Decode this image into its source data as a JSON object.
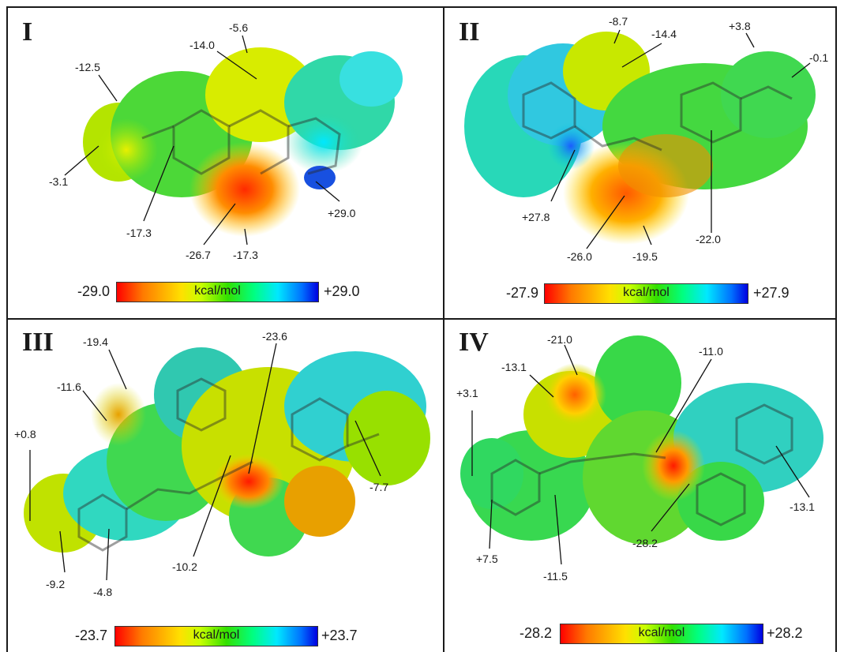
{
  "panels": [
    {
      "id": "I",
      "values": [
        "-12.5",
        "-14.0",
        "-5.6",
        "-3.1",
        "-17.3",
        "-26.7",
        "-17.3",
        "+29.0"
      ],
      "colorbar": {
        "min": "-29.0",
        "max": "+29.0",
        "unit": "kcal/mol"
      }
    },
    {
      "id": "II",
      "values": [
        "-8.7",
        "-14.4",
        "+3.8",
        "-0.1",
        "+27.8",
        "-26.0",
        "-19.5",
        "-22.0"
      ],
      "colorbar": {
        "min": "-27.9",
        "max": "+27.9",
        "unit": "kcal/mol"
      }
    },
    {
      "id": "III",
      "values": [
        "-19.4",
        "-23.6",
        "-11.6",
        "+0.8",
        "-9.2",
        "-4.8",
        "-10.2",
        "-7.7"
      ],
      "colorbar": {
        "min": "-23.7",
        "max": "+23.7",
        "unit": "kcal/mol"
      }
    },
    {
      "id": "IV",
      "values": [
        "-21.0",
        "-11.0",
        "-13.1",
        "+3.1",
        "+7.5",
        "-11.5",
        "-28.2",
        "-13.1"
      ],
      "colorbar": {
        "min": "-28.2",
        "max": "+28.2",
        "unit": "kcal/mol"
      }
    }
  ],
  "colors": {
    "negative": "#ff0000",
    "neutral": "#33e000",
    "positive": "#0000e0"
  }
}
